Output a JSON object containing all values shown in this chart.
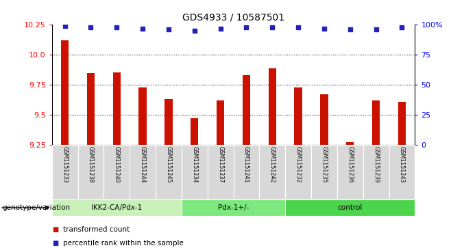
{
  "title": "GDS4933 / 10587501",
  "samples": [
    "GSM1151233",
    "GSM1151238",
    "GSM1151240",
    "GSM1151244",
    "GSM1151245",
    "GSM1151234",
    "GSM1151237",
    "GSM1151241",
    "GSM1151242",
    "GSM1151232",
    "GSM1151235",
    "GSM1151236",
    "GSM1151239",
    "GSM1151243"
  ],
  "bar_values": [
    10.12,
    9.85,
    9.855,
    9.73,
    9.63,
    9.475,
    9.62,
    9.83,
    9.89,
    9.73,
    9.67,
    9.275,
    9.62,
    9.61
  ],
  "percentile_values": [
    99,
    98,
    98,
    97,
    96,
    95,
    97,
    98,
    98,
    98,
    97,
    96,
    96,
    98
  ],
  "groups": [
    {
      "label": "IKK2-CA/Pdx-1",
      "start": 0,
      "end": 5
    },
    {
      "label": "Pdx-1+/-",
      "start": 5,
      "end": 9
    },
    {
      "label": "control",
      "start": 9,
      "end": 14
    }
  ],
  "group_colors": [
    "#c8f0b8",
    "#7de87d",
    "#4cd44c"
  ],
  "ylim": [
    9.25,
    10.25
  ],
  "yticks_left": [
    9.25,
    9.5,
    9.75,
    10.0,
    10.25
  ],
  "yticks_right": [
    0,
    25,
    50,
    75,
    100
  ],
  "bar_color": "#cc1100",
  "dot_color": "#2222bb",
  "sample_box_color": "#d8d8d8",
  "legend_bar_label": "transformed count",
  "legend_dot_label": "percentile rank within the sample",
  "genotype_label": "genotype/variation"
}
